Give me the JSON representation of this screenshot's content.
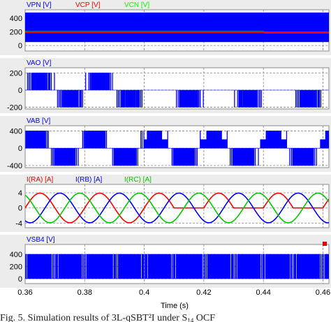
{
  "chart_data": {
    "type": "line",
    "xlabel": "Time (s)",
    "xlim": [
      0.36,
      0.462
    ],
    "xticks": [
      "0.36",
      "0.38",
      "0.4",
      "0.42",
      "0.44",
      "0.46"
    ],
    "caption": "Fig. 5. Simulation results of 3L-qSBT²I under S",
    "caption_sub": "14",
    "caption_tail": " OCF",
    "panels": [
      {
        "id": "vpn",
        "signals": [
          {
            "name": "VPN [V]",
            "color": "#0000ff"
          },
          {
            "name": "VCP [V]",
            "color": "#ff0000"
          },
          {
            "name": "VCN [V]",
            "color": "#00ff00"
          }
        ],
        "ylim": [
          -80,
          520
        ],
        "yticks": [
          "400",
          "200",
          "0"
        ],
        "ytick_values": [
          400,
          200,
          0
        ],
        "series": [
          {
            "name": "VPN",
            "kind": "band",
            "color": "#0000ff",
            "low": 50,
            "high": 480
          },
          {
            "name": "VCN",
            "kind": "line",
            "color": "#00cc33",
            "x": [
              0.36,
              0.44,
              0.4405,
              0.462
            ],
            "y": [
              200,
              200,
              190,
              190
            ]
          },
          {
            "name": "VCP",
            "kind": "line",
            "color": "#ff0000",
            "x": [
              0.36,
              0.462
            ],
            "y": [
              195,
              195
            ]
          }
        ]
      },
      {
        "id": "vao",
        "signals": [
          {
            "name": "VAO [V]",
            "color": "#0000ff"
          }
        ],
        "ylim": [
          -220,
          260
        ],
        "yticks": [
          "200",
          "0",
          "-200"
        ],
        "ytick_values": [
          200,
          0,
          -200
        ],
        "series": [
          {
            "name": "VAO",
            "kind": "pwm",
            "color": "#0000ff",
            "amplitude": 200,
            "period": 0.02,
            "phase_deg": 0,
            "mode": "half",
            "fault_at": 0.4
          }
        ]
      },
      {
        "id": "vab",
        "signals": [
          {
            "name": "VAB [V]",
            "color": "#0000ff"
          }
        ],
        "ylim": [
          -450,
          520
        ],
        "yticks": [
          "400",
          "0",
          "-400"
        ],
        "ytick_values": [
          400,
          0,
          -400
        ],
        "series": [
          {
            "name": "VAB",
            "kind": "pwm",
            "color": "#0000ff",
            "amplitude": 400,
            "period": 0.02,
            "phase_deg": 30,
            "mode": "line",
            "fault_at": 0.4
          }
        ]
      },
      {
        "id": "irc",
        "signals": [
          {
            "name": "I(RA) [A]",
            "color": "#ff0000"
          },
          {
            "name": "I(RB) [A]",
            "color": "#0000ff"
          },
          {
            "name": "I(RC) [A]",
            "color": "#00cc00"
          }
        ],
        "ylim": [
          -5.2,
          6.2
        ],
        "yticks": [
          "4",
          "0",
          "-4"
        ],
        "ytick_values": [
          4,
          0,
          -4
        ],
        "series": [
          {
            "name": "I(RA)",
            "kind": "sine",
            "color": "#ff0000",
            "amplitude": 3.9,
            "period": 0.02,
            "phase_deg": 0,
            "fault_at": 0.4,
            "clip_neg": true
          },
          {
            "name": "I(RB)",
            "kind": "sine",
            "color": "#0000ff",
            "amplitude": 3.9,
            "period": 0.02,
            "phase_deg": -120
          },
          {
            "name": "I(RC)",
            "kind": "sine",
            "color": "#00cc00",
            "amplitude": 3.9,
            "period": 0.02,
            "phase_deg": 120
          }
        ]
      },
      {
        "id": "vsb4",
        "signals": [
          {
            "name": "VSB4 [V]",
            "color": "#0000ff"
          }
        ],
        "ylim": [
          -80,
          560
        ],
        "yticks": [
          "400",
          "200",
          "0"
        ],
        "ytick_values": [
          400,
          200,
          0
        ],
        "series": [
          {
            "name": "VSB4",
            "kind": "pwm",
            "color": "#0000ff",
            "amplitude": 400,
            "period": 0.02,
            "phase_deg": 0,
            "mode": "switch"
          }
        ]
      }
    ]
  }
}
